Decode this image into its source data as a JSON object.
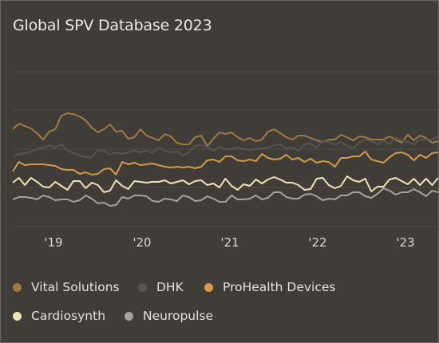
{
  "title": "Global SPV Database 2023",
  "chart_data": {
    "type": "line",
    "title": "Global SPV Database 2023",
    "xlabel": "",
    "ylabel": "",
    "x_ticks": [
      "'19",
      "'20",
      "'21",
      "'22",
      "'23"
    ],
    "grid": "horizontal",
    "legend_position": "bottom",
    "series": [
      {
        "name": "Vital Solutions",
        "color": "#a07a45",
        "values": [
          161,
          154,
          157,
          160,
          166,
          174,
          164,
          161,
          144,
          141,
          142,
          145,
          150,
          159,
          165,
          161,
          155,
          164,
          163,
          173,
          171,
          161,
          169,
          172,
          175,
          167,
          170,
          178,
          180,
          180,
          171,
          169,
          182,
          173,
          165,
          167,
          165,
          171,
          175,
          172,
          176,
          174,
          164,
          161,
          166,
          171,
          174,
          169,
          169,
          172,
          175,
          177,
          174,
          174,
          168,
          171,
          175,
          170,
          171,
          174,
          174,
          174,
          170,
          174,
          178,
          168,
          175,
          169,
          172,
          178,
          176
        ]
      },
      {
        "name": "DHK",
        "color": "#58544f",
        "values": [
          196,
          192,
          191,
          189,
          186,
          184,
          181,
          184,
          180,
          188,
          191,
          194,
          196,
          196,
          187,
          188,
          193,
          190,
          192,
          190,
          188,
          190,
          188,
          191,
          184,
          188,
          190,
          189,
          194,
          190,
          182,
          181,
          183,
          188,
          183,
          186,
          186,
          184,
          186,
          187,
          186,
          185,
          184,
          181,
          180,
          185,
          184,
          188,
          180,
          179,
          184,
          176,
          177,
          180,
          177,
          182,
          185,
          178,
          174,
          176,
          180,
          175,
          180,
          171,
          175,
          177,
          180,
          174,
          174,
          174,
          170
        ]
      },
      {
        "name": "ProHealth Devices",
        "color": "#d39a4c",
        "values": [
          214,
          202,
          206,
          205,
          205,
          205,
          206,
          207,
          211,
          212,
          212,
          217,
          215,
          218,
          217,
          211,
          210,
          218,
          202,
          205,
          203,
          206,
          205,
          204,
          206,
          208,
          209,
          208,
          209,
          208,
          210,
          208,
          200,
          199,
          202,
          195,
          195,
          200,
          201,
          199,
          201,
          192,
          197,
          199,
          198,
          193,
          199,
          197,
          202,
          198,
          203,
          201,
          202,
          208,
          197,
          197,
          195,
          195,
          189,
          199,
          201,
          203,
          196,
          191,
          190,
          193,
          200,
          193,
          197,
          191,
          190
        ]
      },
      {
        "name": "Cardiosynth",
        "color": "#f2e2b8",
        "values": [
          228,
          222,
          231,
          222,
          227,
          233,
          234,
          227,
          232,
          237,
          226,
          226,
          235,
          228,
          231,
          240,
          238,
          225,
          232,
          236,
          226,
          227,
          228,
          227,
          227,
          225,
          229,
          227,
          225,
          230,
          226,
          225,
          231,
          229,
          234,
          223,
          232,
          237,
          230,
          232,
          224,
          229,
          224,
          221,
          224,
          228,
          228,
          231,
          237,
          236,
          223,
          222,
          231,
          235,
          232,
          220,
          225,
          227,
          223,
          239,
          233,
          233,
          224,
          222,
          226,
          230,
          223,
          231,
          223,
          231,
          222
        ]
      },
      {
        "name": "Neuropulse",
        "color": "#a8a29b",
        "values": [
          249,
          246,
          246,
          247,
          249,
          244,
          246,
          250,
          249,
          249,
          252,
          250,
          244,
          248,
          254,
          253,
          257,
          256,
          246,
          248,
          244,
          244,
          245,
          251,
          252,
          248,
          249,
          251,
          244,
          246,
          251,
          250,
          245,
          248,
          252,
          252,
          244,
          249,
          249,
          248,
          244,
          249,
          247,
          240,
          240,
          246,
          248,
          248,
          243,
          242,
          245,
          250,
          248,
          249,
          244,
          244,
          240,
          240,
          245,
          247,
          242,
          235,
          238,
          243,
          240,
          240,
          236,
          240,
          245,
          238,
          240
        ]
      }
    ]
  },
  "legend": [
    {
      "label": "Vital Solutions",
      "color": "#a07a45"
    },
    {
      "label": "DHK",
      "color": "#58544f"
    },
    {
      "label": "ProHealth Devices",
      "color": "#d39a4c"
    },
    {
      "label": "Cardiosynth",
      "color": "#f2e2b8"
    },
    {
      "label": "Neuropulse",
      "color": "#a8a29b"
    }
  ]
}
